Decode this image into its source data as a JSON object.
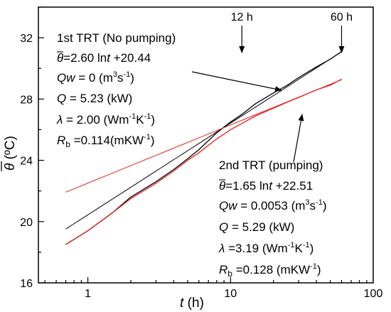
{
  "chart_data": {
    "type": "line",
    "xlabel": "t (h)",
    "xlabel_var": "t",
    "xlabel_unit": " (h)",
    "ylabel": "θ̄ (ºC)",
    "ylabel_var": "θ",
    "ylabel_unit": " (ºC)",
    "x_scale": "log",
    "xlim": [
      0.45,
      100
    ],
    "ylim": [
      16,
      34
    ],
    "x_ticks": [
      1,
      10,
      100
    ],
    "y_ticks": [
      16,
      20,
      24,
      28,
      32
    ],
    "x_tick_labels": [
      "1",
      "10",
      "100"
    ],
    "y_tick_labels": [
      "16",
      "20",
      "24",
      "28",
      "32"
    ],
    "grid": false,
    "series": [
      {
        "name": "1st TRT (No pumping)",
        "color": "#000000",
        "fit": {
          "a": 2.6,
          "b": 20.44
        },
        "x": [
          0.7,
          1,
          1.5,
          2,
          3,
          4,
          5,
          6,
          8,
          10,
          12,
          15,
          20,
          25,
          30,
          40,
          50,
          60
        ],
        "y": [
          18.5,
          19.4,
          20.6,
          21.6,
          22.6,
          23.4,
          24.1,
          24.7,
          25.8,
          26.5,
          27.0,
          27.7,
          28.4,
          28.9,
          29.4,
          30.1,
          30.6,
          31.1
        ]
      },
      {
        "name": "2nd TRT (pumping)",
        "color": "#e8201c",
        "fit": {
          "a": 1.65,
          "b": 22.51
        },
        "x": [
          0.7,
          1,
          1.5,
          2,
          3,
          4,
          5,
          6,
          8,
          10,
          12,
          15,
          20,
          25,
          30,
          40,
          50,
          60
        ],
        "y": [
          18.5,
          19.4,
          20.6,
          21.5,
          22.5,
          23.3,
          24.0,
          24.5,
          25.4,
          26.0,
          26.4,
          26.9,
          27.4,
          27.8,
          28.1,
          28.6,
          28.9,
          29.3
        ]
      }
    ],
    "markers": [
      {
        "label": "12 h",
        "x": 12
      },
      {
        "label": "60 h",
        "x": 60
      }
    ],
    "annotations": {
      "first": {
        "title": "1st TRT (No pumping)",
        "eq_var": "θ",
        "eq_rest": "=2.60 ln",
        "eq_t": "t",
        "eq_tail": " +20.44",
        "qw_var": "Qw",
        "qw_val": " = 0 (m",
        "qw_sup1": "3",
        "qw_mid": "s",
        "qw_sup2": "-1",
        "qw_end": ")",
        "q_var": "Q",
        "q_val": " = 5.23 (kW)",
        "lam_var": "λ",
        "lam_val": " = 2.00 (Wm",
        "lam_sup1": "-1",
        "lam_mid": "K",
        "lam_sup2": "-1",
        "lam_end": ")",
        "rb_var": "R",
        "rb_sub": "b",
        "rb_val": " =0.114(mKW",
        "rb_sup": "-1",
        "rb_end": ")"
      },
      "second": {
        "title": "2nd TRT (pumping)",
        "eq_var": "θ",
        "eq_rest": "=1.65 ln",
        "eq_t": "t",
        "eq_tail": " +22.51",
        "qw_var": "Qw",
        "qw_val": " = 0.0053 (m",
        "qw_sup1": "3",
        "qw_mid": "s",
        "qw_sup2": "-1",
        "qw_end": ")",
        "q_var": "Q",
        "q_val": " = 5.29 (kW)",
        "lam_var": "λ",
        "lam_val": " =3.19 (Wm",
        "lam_sup1": "-1",
        "lam_mid": "K",
        "lam_sup2": "-1",
        "lam_end": ")",
        "rb_var": "R",
        "rb_sub": "b",
        "rb_val": " =0.128 (mKW",
        "rb_sup": "-1",
        "rb_end": ")"
      }
    }
  }
}
